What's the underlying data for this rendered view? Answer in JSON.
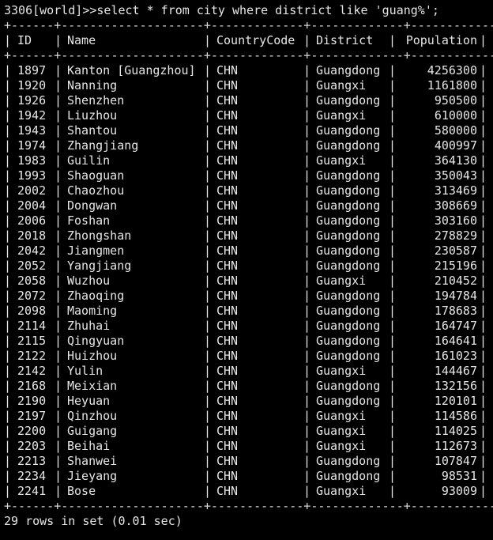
{
  "terminal": {
    "command_line": "3306[world]>>select * from city where district like 'guang%';",
    "separator": "+------+--------------------+-------------+-------------+------------+",
    "footer": "29 rows in set (0.01 sec)"
  },
  "table": {
    "headers": [
      "ID",
      "Name",
      "CountryCode",
      "District",
      "Population"
    ],
    "rows": [
      [
        "1897",
        "Kanton [Guangzhou]",
        "CHN",
        "Guangdong",
        "4256300"
      ],
      [
        "1920",
        "Nanning",
        "CHN",
        "Guangxi",
        "1161800"
      ],
      [
        "1926",
        "Shenzhen",
        "CHN",
        "Guangdong",
        "950500"
      ],
      [
        "1942",
        "Liuzhou",
        "CHN",
        "Guangxi",
        "610000"
      ],
      [
        "1943",
        "Shantou",
        "CHN",
        "Guangdong",
        "580000"
      ],
      [
        "1974",
        "Zhangjiang",
        "CHN",
        "Guangdong",
        "400997"
      ],
      [
        "1983",
        "Guilin",
        "CHN",
        "Guangxi",
        "364130"
      ],
      [
        "1993",
        "Shaoguan",
        "CHN",
        "Guangdong",
        "350043"
      ],
      [
        "2002",
        "Chaozhou",
        "CHN",
        "Guangdong",
        "313469"
      ],
      [
        "2004",
        "Dongwan",
        "CHN",
        "Guangdong",
        "308669"
      ],
      [
        "2006",
        "Foshan",
        "CHN",
        "Guangdong",
        "303160"
      ],
      [
        "2018",
        "Zhongshan",
        "CHN",
        "Guangdong",
        "278829"
      ],
      [
        "2042",
        "Jiangmen",
        "CHN",
        "Guangdong",
        "230587"
      ],
      [
        "2052",
        "Yangjiang",
        "CHN",
        "Guangdong",
        "215196"
      ],
      [
        "2058",
        "Wuzhou",
        "CHN",
        "Guangxi",
        "210452"
      ],
      [
        "2072",
        "Zhaoqing",
        "CHN",
        "Guangdong",
        "194784"
      ],
      [
        "2098",
        "Maoming",
        "CHN",
        "Guangdong",
        "178683"
      ],
      [
        "2114",
        "Zhuhai",
        "CHN",
        "Guangdong",
        "164747"
      ],
      [
        "2115",
        "Qingyuan",
        "CHN",
        "Guangdong",
        "164641"
      ],
      [
        "2122",
        "Huizhou",
        "CHN",
        "Guangdong",
        "161023"
      ],
      [
        "2142",
        "Yulin",
        "CHN",
        "Guangxi",
        "144467"
      ],
      [
        "2168",
        "Meixian",
        "CHN",
        "Guangdong",
        "132156"
      ],
      [
        "2190",
        "Heyuan",
        "CHN",
        "Guangdong",
        "120101"
      ],
      [
        "2197",
        "Qinzhou",
        "CHN",
        "Guangxi",
        "114586"
      ],
      [
        "2200",
        "Guigang",
        "CHN",
        "Guangxi",
        "114025"
      ],
      [
        "2203",
        "Beihai",
        "CHN",
        "Guangxi",
        "112673"
      ],
      [
        "2213",
        "Shanwei",
        "CHN",
        "Guangdong",
        "107847"
      ],
      [
        "2234",
        "Jieyang",
        "CHN",
        "Guangdong",
        "98531"
      ],
      [
        "2241",
        "Bose",
        "CHN",
        "Guangxi",
        "93009"
      ]
    ]
  }
}
